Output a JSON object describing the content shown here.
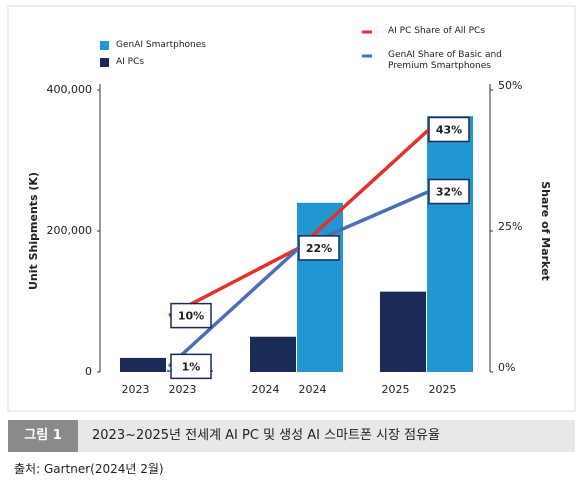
{
  "chart_data": {
    "type": "bar",
    "categories": [
      "2023",
      "2024",
      "2025"
    ],
    "series": [
      {
        "name": "AI PCs",
        "color": "#1b2a57",
        "values": [
          20000,
          50000,
          114000
        ]
      },
      {
        "name": "GenAI Smartphones",
        "color": "#2196d3",
        "values": [
          3000,
          240000,
          363000
        ]
      },
      {
        "name": "AI PC Share of All PCs",
        "color": "#e5302a",
        "axis": "y2",
        "kind": "line",
        "values": [
          10,
          22,
          43
        ],
        "value_labels": [
          "10%",
          null,
          "43%"
        ]
      },
      {
        "name": "GenAI Share of Basic and Premium Smartphones",
        "color": "#4a6fb5",
        "axis": "y2",
        "kind": "line",
        "values": [
          1,
          22,
          32
        ],
        "value_labels": [
          "1%",
          "22%",
          "32%"
        ]
      }
    ],
    "ylabel": "Unit Shipments (K)",
    "y2label": "Share of Market",
    "ylim": [
      0,
      400000
    ],
    "yticks": [
      0,
      {
        "value": 200000,
        "label": "200,000"
      },
      {
        "value": 400000,
        "label": "400,000"
      }
    ],
    "y2lim": [
      0,
      50
    ],
    "y2ticks": [
      {
        "value": 0,
        "label": "0%"
      },
      {
        "value": 25,
        "label": "25%"
      },
      {
        "value": 50,
        "label": "50%"
      }
    ]
  },
  "caption": {
    "number": "그림 1",
    "title": "2023~2025년 전세계 AI PC 및 생성 AI 스마트폰 시장 점유율",
    "source": "출처: Gartner(2024년 2월)"
  }
}
